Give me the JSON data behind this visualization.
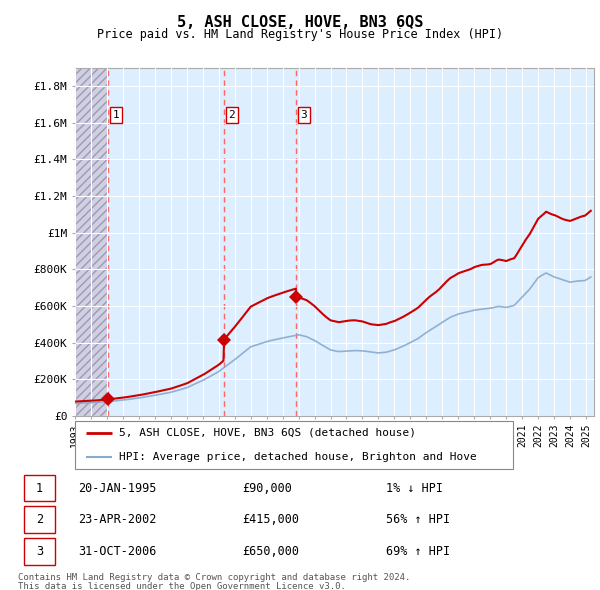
{
  "title": "5, ASH CLOSE, HOVE, BN3 6QS",
  "subtitle": "Price paid vs. HM Land Registry's House Price Index (HPI)",
  "footer1": "Contains HM Land Registry data © Crown copyright and database right 2024.",
  "footer2": "This data is licensed under the Open Government Licence v3.0.",
  "legend_line1": "5, ASH CLOSE, HOVE, BN3 6QS (detached house)",
  "legend_line2": "HPI: Average price, detached house, Brighton and Hove",
  "transactions": [
    {
      "label": "1",
      "date": "20-JAN-1995",
      "date_num": 1995.05,
      "price": 90000,
      "pct": "1% ↓ HPI"
    },
    {
      "label": "2",
      "date": "23-APR-2002",
      "date_num": 2002.31,
      "price": 415000,
      "pct": "56% ↑ HPI"
    },
    {
      "label": "3",
      "date": "31-OCT-2006",
      "date_num": 2006.83,
      "price": 650000,
      "pct": "69% ↑ HPI"
    }
  ],
  "price_line_color": "#cc0000",
  "hpi_line_color": "#88aacc",
  "vline_color": "#ff6666",
  "plot_bg": "#ddeeff",
  "hatch_bg": "#d0d0e0",
  "ylim": [
    0,
    1900000
  ],
  "xlim_start": 1993.0,
  "xlim_end": 2025.5,
  "yticks": [
    0,
    200000,
    400000,
    600000,
    800000,
    1000000,
    1200000,
    1400000,
    1600000,
    1800000
  ],
  "ylabels": [
    "£0",
    "£200K",
    "£400K",
    "£600K",
    "£800K",
    "£1M",
    "£1.2M",
    "£1.4M",
    "£1.6M",
    "£1.8M"
  ]
}
